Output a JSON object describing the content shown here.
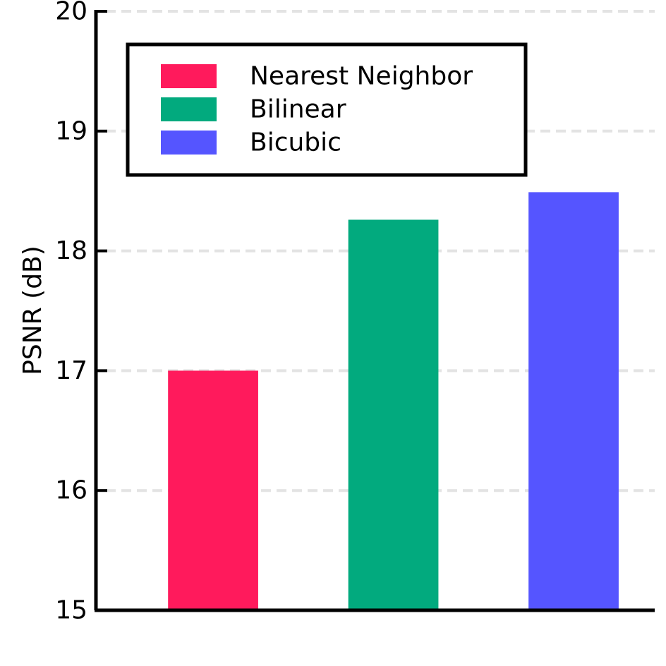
{
  "chart_data": {
    "type": "bar",
    "categories": [
      "Nearest Neighbor",
      "Bilinear",
      "Bicubic"
    ],
    "values": [
      17.0,
      18.26,
      18.49
    ],
    "colors": [
      "#ff1a5c",
      "#02aa7e",
      "#5555ff"
    ],
    "title": "",
    "xlabel": "",
    "ylabel": "PSNR (dB)",
    "ylim": [
      15,
      20
    ],
    "yticks": [
      15,
      16,
      17,
      18,
      19,
      20
    ],
    "grid": true,
    "grid_style": "dashed horizontal",
    "legend": {
      "placement": "top-left",
      "entries": [
        "Nearest Neighbor",
        "Bilinear",
        "Bicubic"
      ]
    }
  }
}
